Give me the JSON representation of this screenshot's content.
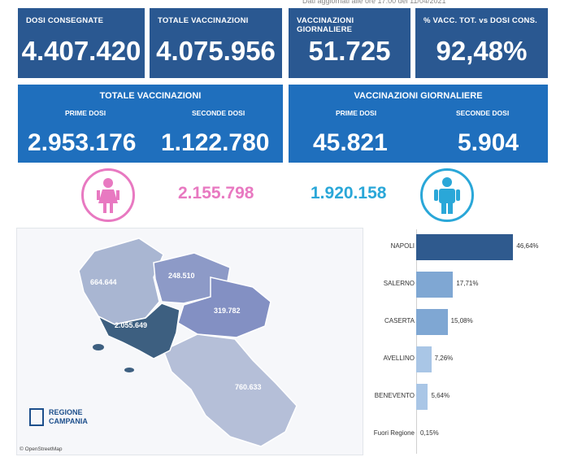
{
  "top_caption": "Dati aggiornati alle ore 17:00 del 11/04/2021",
  "cards": [
    {
      "label": "DOSI  CONSEGNATE",
      "value": "4.407.420"
    },
    {
      "label": "TOTALE VACCINAZIONI",
      "value": "4.075.956"
    },
    {
      "label": "VACCINAZIONI GIORNALIERE",
      "value": "51.725"
    },
    {
      "label": "% VACC. TOT. vs DOSI CONS.",
      "value": "92,48%"
    }
  ],
  "panels": [
    {
      "title": "TOTALE VACCINAZIONI",
      "first_label": "PRIME DOSI",
      "first_value": "2.953.176",
      "second_label": "SECONDE DOSI",
      "second_value": "1.122.780"
    },
    {
      "title": "VACCINAZIONI GIORNALIERE",
      "first_label": "PRIME DOSI",
      "first_value": "45.821",
      "second_label": "SECONDE DOSI",
      "second_value": "5.904"
    }
  ],
  "gender": {
    "female_icon": "female-person-icon",
    "female_value": "2.155.798",
    "female_color": "#e879c1",
    "male_icon": "male-person-icon",
    "male_value": "1.920.158",
    "male_color": "#2aa7d8"
  },
  "map": {
    "provinces": [
      {
        "name": "Caserta",
        "value": "664.644",
        "color": "#a9b6d2"
      },
      {
        "name": "Benevento",
        "value": "248.510",
        "color": "#8d9ac7"
      },
      {
        "name": "Avellino",
        "value": "319.782",
        "color": "#8390c3"
      },
      {
        "name": "Napoli",
        "value": "2.055.649",
        "color": "#3d5f80"
      },
      {
        "name": "Salerno",
        "value": "760.633",
        "color": "#b5bfd8"
      }
    ],
    "credit": "© OpenStreetMap",
    "logo_line1": "REGIONE",
    "logo_line2": "CAMPANIA"
  },
  "chart_data": {
    "type": "bar",
    "orientation": "horizontal",
    "categories": [
      "NAPOLI",
      "SALERNO",
      "CASERTA",
      "AVELLINO",
      "BENEVENTO",
      "Fuori Regione"
    ],
    "values": [
      46.64,
      17.71,
      15.08,
      7.26,
      5.64,
      0.15
    ],
    "labels": [
      "46,64%",
      "17,71%",
      "15,08%",
      "7,26%",
      "5,64%",
      "0,15%"
    ],
    "colors": [
      "#2f5a8e",
      "#7fa7d3",
      "#7fa7d3",
      "#a9c6e6",
      "#a9c6e6",
      "#c9dcf0"
    ],
    "xlim": [
      0,
      50
    ]
  }
}
